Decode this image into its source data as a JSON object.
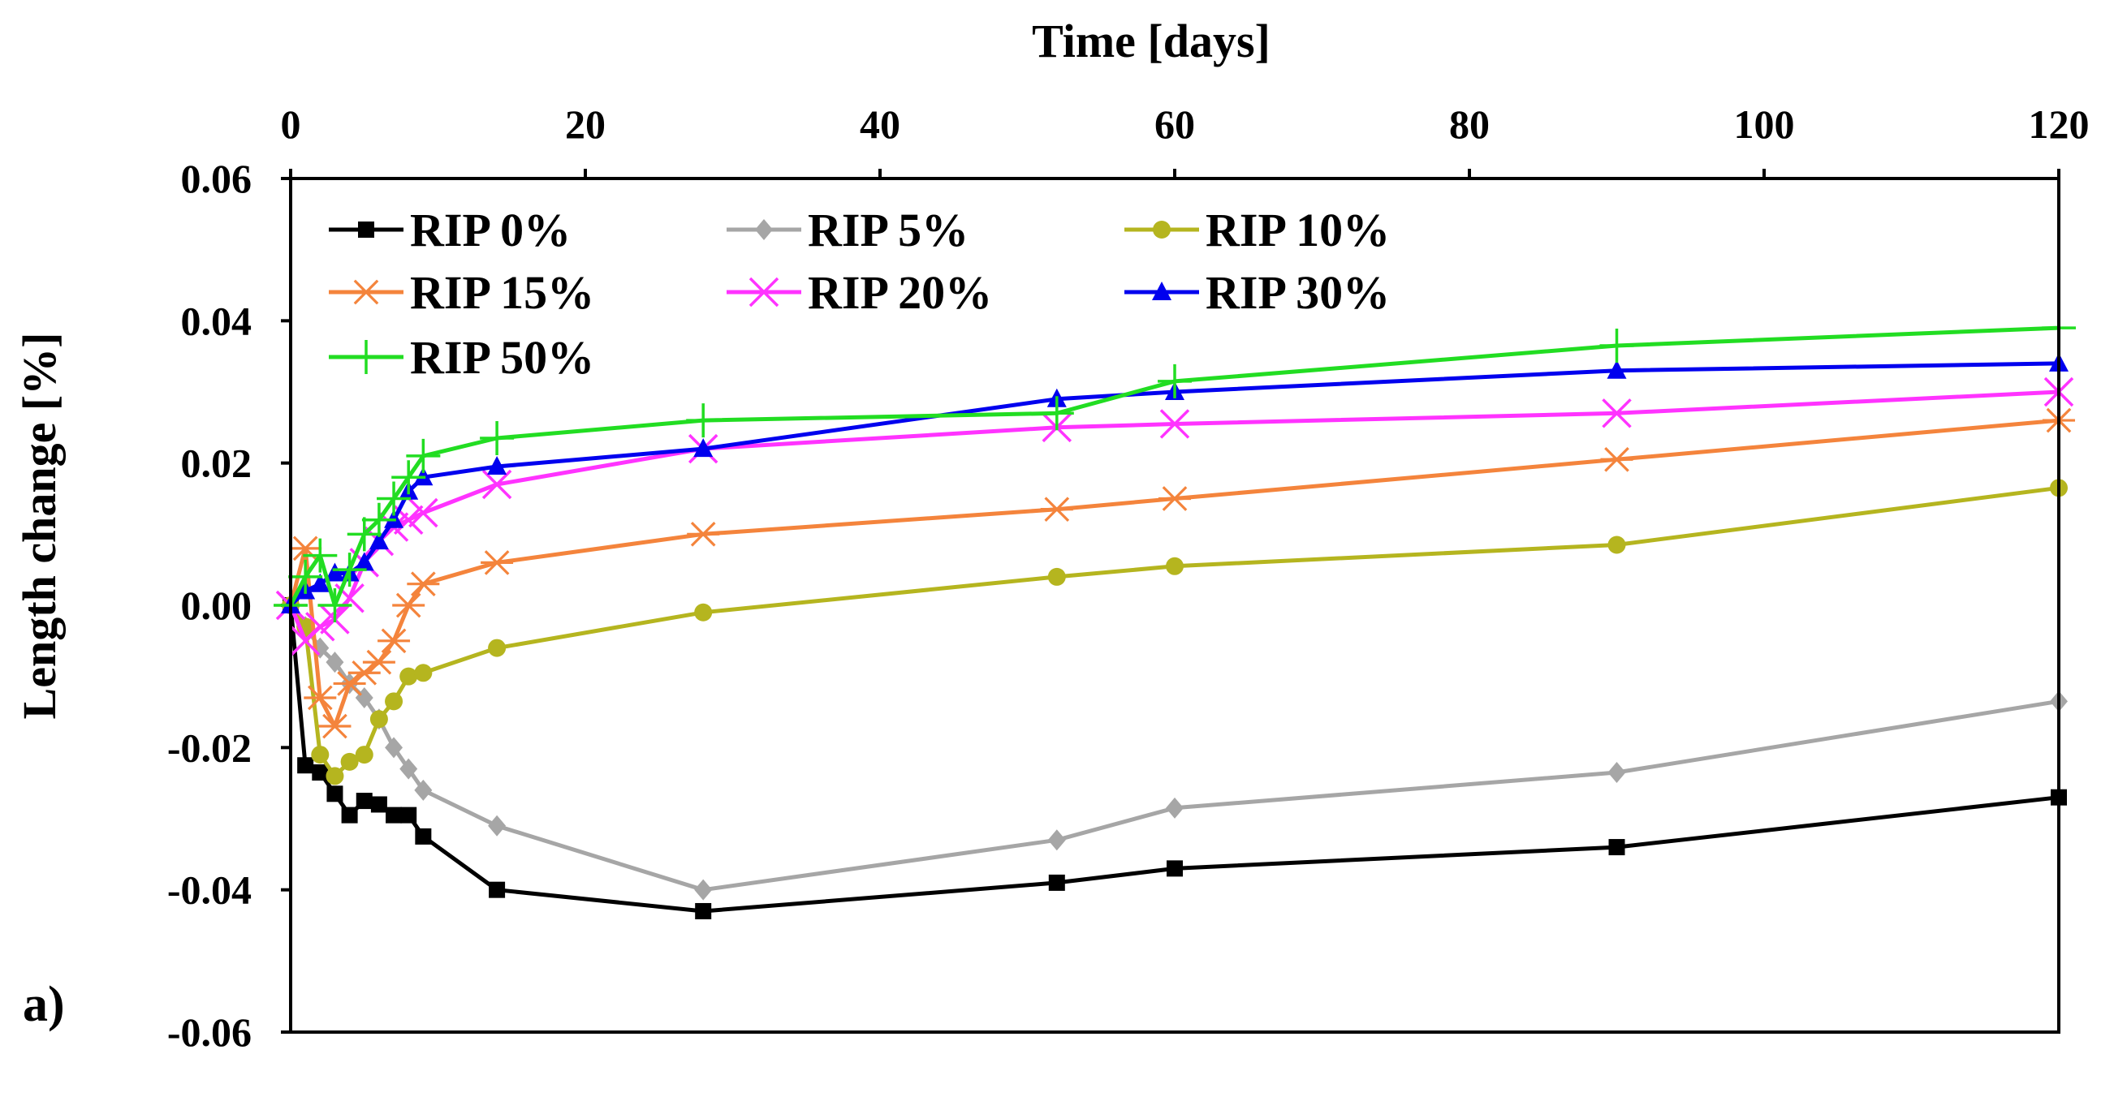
{
  "chart_data": {
    "type": "line",
    "title": "",
    "xlabel": "Time  [days]",
    "ylabel": "Length change [%]",
    "panel_label": "a)",
    "x_axis_position": "top",
    "xlim": [
      0,
      120
    ],
    "ylim": [
      -0.06,
      0.06
    ],
    "x_ticks": [
      0,
      20,
      40,
      60,
      80,
      100,
      120
    ],
    "x_tick_labels": [
      "0",
      "20",
      "40",
      "60",
      "80",
      "100",
      "120"
    ],
    "y_ticks": [
      0.06,
      0.04,
      0.02,
      0.0,
      -0.02,
      -0.04,
      -0.06
    ],
    "y_tick_labels": [
      "0.06",
      "0.04",
      "0.02",
      "0.00",
      "-0.02",
      "-0.04",
      "-0.06"
    ],
    "grid": false,
    "legend_position": "top-left",
    "series": [
      {
        "name": "RIP 0%",
        "color": "#000000",
        "marker": "square",
        "x": [
          0,
          1,
          2,
          3,
          4,
          5,
          6,
          7,
          8,
          9,
          14,
          28,
          52,
          60,
          90,
          120
        ],
        "y": [
          0.0,
          -0.0225,
          -0.0235,
          -0.0265,
          -0.0295,
          -0.0275,
          -0.028,
          -0.0295,
          -0.0295,
          -0.0325,
          -0.04,
          -0.043,
          -0.039,
          -0.037,
          -0.034,
          -0.027
        ]
      },
      {
        "name": "RIP 5%",
        "color": "#a6a6a6",
        "marker": "diamond",
        "x": [
          0,
          1,
          2,
          3,
          4,
          5,
          6,
          7,
          8,
          9,
          14,
          28,
          52,
          60,
          90,
          120
        ],
        "y": [
          0.0,
          -0.003,
          -0.006,
          -0.008,
          -0.011,
          -0.013,
          -0.016,
          -0.02,
          -0.023,
          -0.026,
          -0.031,
          -0.04,
          -0.033,
          -0.0285,
          -0.0235,
          -0.0135
        ]
      },
      {
        "name": "RIP 10%",
        "color": "#b5b51f",
        "marker": "circle",
        "x": [
          0,
          1,
          2,
          3,
          4,
          5,
          6,
          7,
          8,
          9,
          14,
          28,
          52,
          60,
          90,
          120
        ],
        "y": [
          0.0,
          -0.003,
          -0.021,
          -0.024,
          -0.022,
          -0.021,
          -0.016,
          -0.0135,
          -0.01,
          -0.0095,
          -0.006,
          -0.001,
          0.004,
          0.0055,
          0.0085,
          0.0165
        ]
      },
      {
        "name": "RIP 15%",
        "color": "#f4843c",
        "marker": "asterisk",
        "x": [
          0,
          1,
          2,
          3,
          4,
          5,
          6,
          7,
          8,
          9,
          14,
          28,
          52,
          60,
          90,
          120
        ],
        "y": [
          0.0,
          0.008,
          -0.013,
          -0.017,
          -0.011,
          -0.0095,
          -0.008,
          -0.005,
          0.0,
          0.003,
          0.006,
          0.01,
          0.0135,
          0.015,
          0.0205,
          0.026
        ]
      },
      {
        "name": "RIP 20%",
        "color": "#ff33ff",
        "marker": "x",
        "x": [
          0,
          1,
          2,
          3,
          4,
          5,
          6,
          7,
          8,
          9,
          14,
          28,
          52,
          60,
          90,
          120
        ],
        "y": [
          0.0,
          -0.005,
          -0.003,
          -0.002,
          0.001,
          0.006,
          0.009,
          0.011,
          0.012,
          0.013,
          0.017,
          0.022,
          0.025,
          0.0255,
          0.027,
          0.03
        ]
      },
      {
        "name": "RIP 30%",
        "color": "#0000ee",
        "marker": "triangle",
        "x": [
          0,
          1,
          2,
          3,
          4,
          5,
          6,
          7,
          8,
          9,
          14,
          28,
          52,
          60,
          90,
          120
        ],
        "y": [
          0.0,
          0.002,
          0.003,
          0.0045,
          0.0045,
          0.006,
          0.009,
          0.012,
          0.016,
          0.018,
          0.0195,
          0.022,
          0.029,
          0.03,
          0.033,
          0.034
        ]
      },
      {
        "name": "RIP 50%",
        "color": "#22dd22",
        "marker": "plus",
        "x": [
          0,
          1,
          2,
          3,
          4,
          5,
          6,
          7,
          8,
          9,
          14,
          28,
          52,
          60,
          90,
          120
        ],
        "y": [
          0.0,
          0.004,
          0.007,
          0.0,
          0.005,
          0.01,
          0.012,
          0.015,
          0.018,
          0.021,
          0.0235,
          0.026,
          0.027,
          0.0315,
          0.0365,
          0.039
        ]
      }
    ]
  }
}
